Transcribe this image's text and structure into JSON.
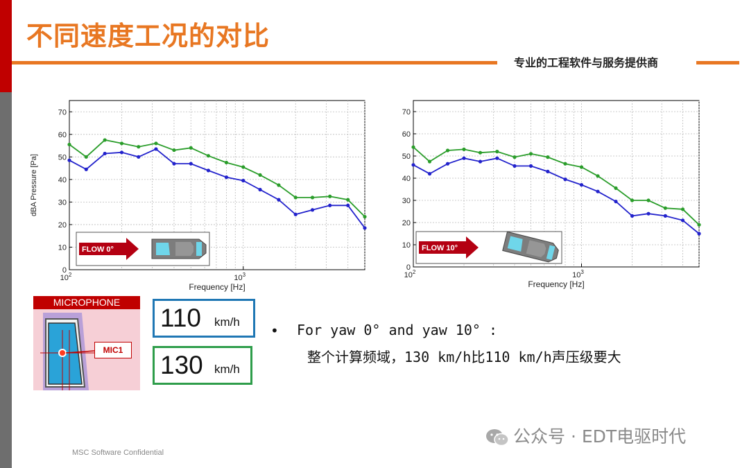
{
  "slide": {
    "title": "不同速度工况的对比",
    "company": "专业的工程软件与服务提供商",
    "footer": "MSC Software Confidential",
    "watermark": "公众号 · EDT电驱时代",
    "colors": {
      "accent_orange": "#e87722",
      "brand_red": "#c00000",
      "sidebar_gray": "#6e6e6e",
      "series_110": "#2222cc",
      "series_130": "#2a9d2a"
    }
  },
  "legend_boxes": {
    "speed_110": {
      "value": "110",
      "unit": "km/h",
      "color": "#1f77b4"
    },
    "speed_130": {
      "value": "130",
      "unit": "km/h",
      "color": "#2e9d4a"
    }
  },
  "microphone": {
    "header": "MICROPHONE",
    "tag": "MIC1"
  },
  "bullet": {
    "line1": "For yaw 0° and yaw 10° :",
    "line2": "整个计算频域，130 km/h比110 km/h声压级要大"
  },
  "chart_data": [
    {
      "type": "line",
      "xscale": "log",
      "xlabel": "Frequency [Hz]",
      "ylabel": "dBA Pressure [Pa]",
      "xlim": [
        100,
        5000
      ],
      "ylim": [
        0,
        75
      ],
      "yticks": [
        0,
        10,
        20,
        30,
        40,
        50,
        60,
        70
      ],
      "xtick_labels": [
        {
          "base": "10",
          "exp": "2"
        },
        {
          "base": "10",
          "exp": "3"
        }
      ],
      "grid": true,
      "inset_label": "FLOW 0°",
      "x": [
        100,
        125,
        160,
        200,
        250,
        315,
        400,
        500,
        630,
        800,
        1000,
        1250,
        1600,
        2000,
        2500,
        3150,
        4000,
        5000
      ],
      "series": [
        {
          "key": "130",
          "color": "#2a9d2a",
          "values": [
            55.5,
            50,
            57.5,
            56,
            54.5,
            56,
            53,
            54,
            50.5,
            47.5,
            45.5,
            42,
            37.5,
            32,
            32,
            32.5,
            31,
            23.5
          ]
        },
        {
          "key": "110",
          "color": "#2222cc",
          "values": [
            48.5,
            44.5,
            51.5,
            52,
            50,
            53.5,
            47,
            47,
            44,
            41,
            39.5,
            35.5,
            31,
            24.5,
            26.5,
            28.5,
            28.5,
            18.5
          ]
        }
      ]
    },
    {
      "type": "line",
      "xscale": "log",
      "xlabel": "Frequency [Hz]",
      "ylabel": "",
      "xlim": [
        100,
        5000
      ],
      "ylim": [
        0,
        75
      ],
      "yticks": [
        0,
        10,
        20,
        30,
        40,
        50,
        60,
        70
      ],
      "xtick_labels": [
        {
          "base": "10",
          "exp": "2"
        },
        {
          "base": "10",
          "exp": "3"
        }
      ],
      "grid": true,
      "inset_label": "FLOW 10°",
      "x": [
        100,
        125,
        160,
        200,
        250,
        315,
        400,
        500,
        630,
        800,
        1000,
        1250,
        1600,
        2000,
        2500,
        3150,
        4000,
        5000
      ],
      "series": [
        {
          "key": "130",
          "color": "#2a9d2a",
          "values": [
            54,
            47.5,
            52.5,
            53,
            51.5,
            52,
            49.5,
            51,
            49.5,
            46.5,
            45,
            41,
            35.5,
            30,
            30,
            26.5,
            26,
            19
          ]
        },
        {
          "key": "110",
          "color": "#2222cc",
          "values": [
            46,
            42,
            46.5,
            49,
            47.5,
            49,
            45.5,
            45.5,
            43,
            39.5,
            37,
            34,
            29.5,
            23,
            24,
            23,
            21,
            15
          ]
        }
      ]
    }
  ]
}
